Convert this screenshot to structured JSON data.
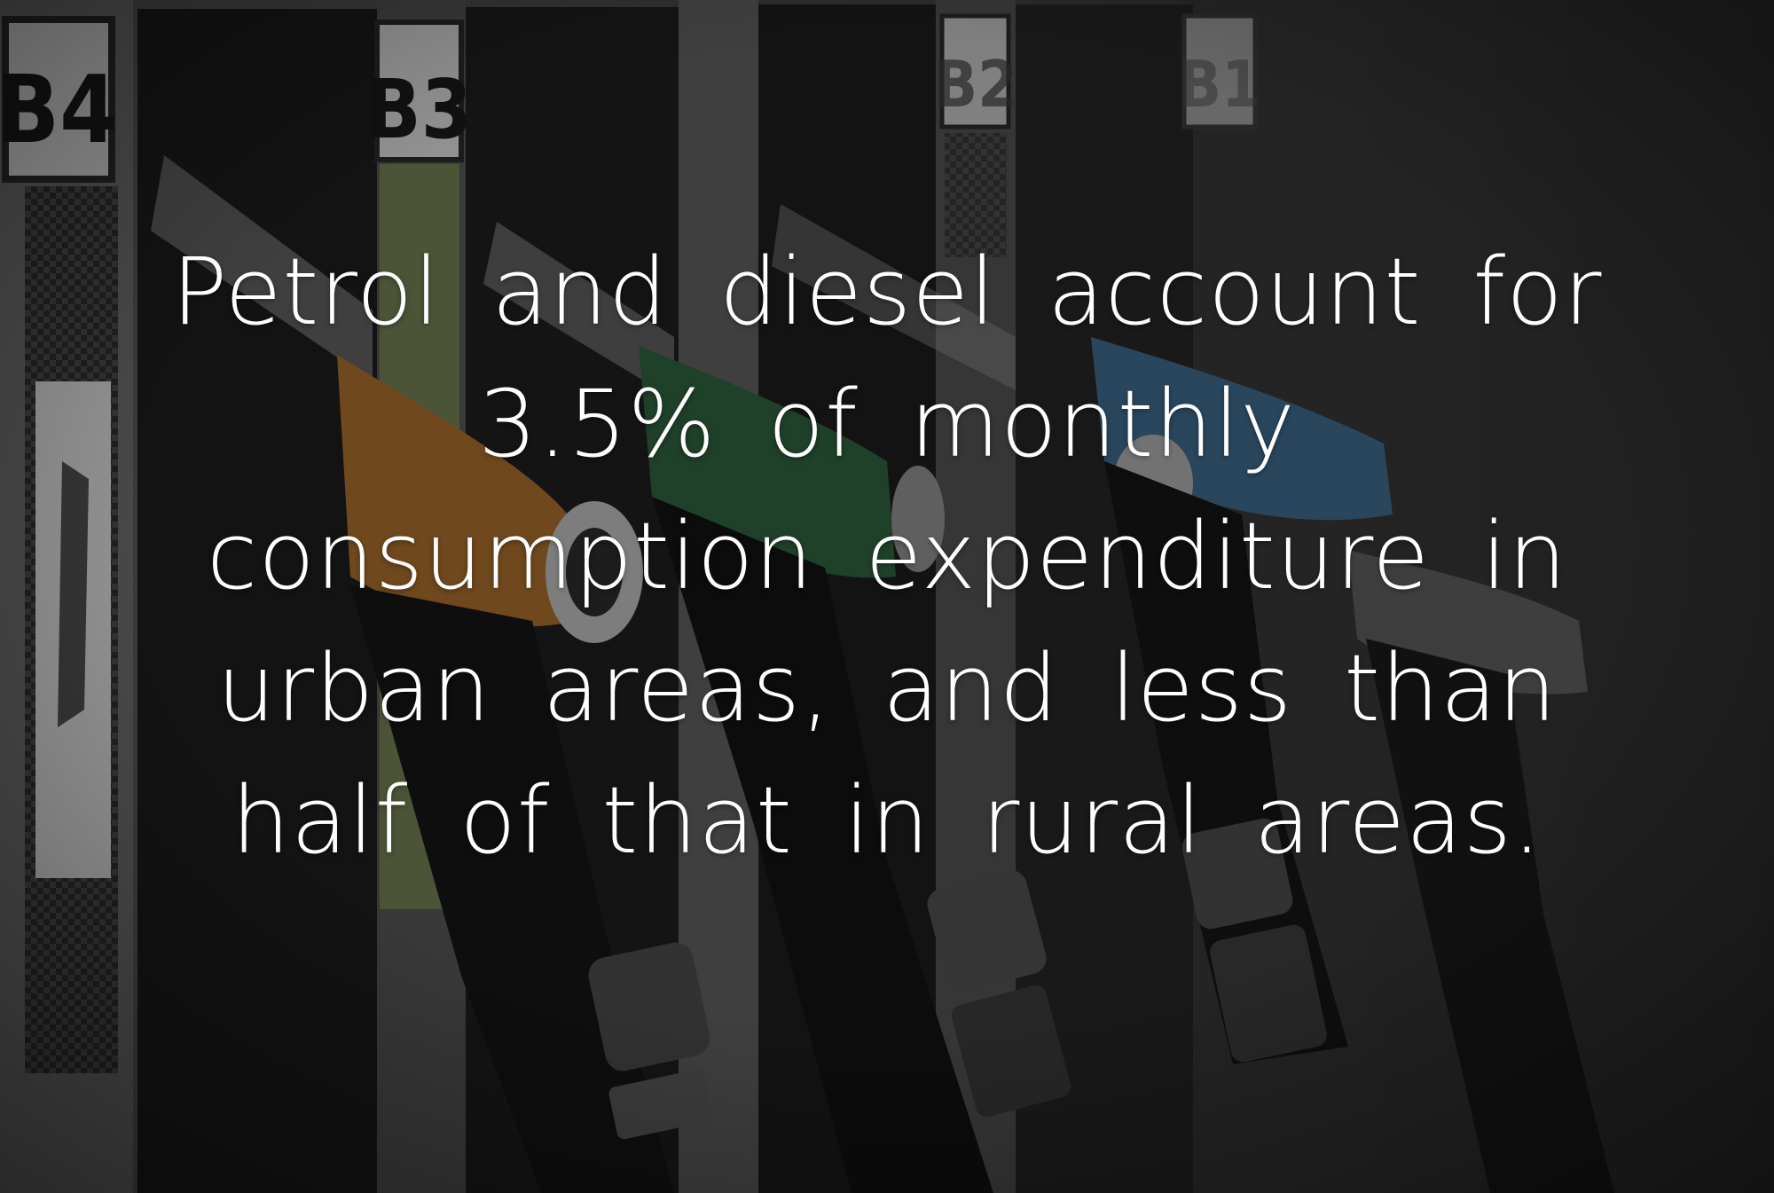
{
  "photo": {
    "subject": "fuel-pump-nozzles",
    "pump_labels": [
      "B4",
      "B3",
      "B2",
      "B1"
    ],
    "nozzle_colors": {
      "orange": "#a46a2c",
      "green": "#2f5f3d",
      "blue": "#3d6789",
      "grey": "#6d6d6d"
    }
  },
  "overlay": {
    "text": "Petrol and diesel account for 3.5% of monthly consumption expenditure in urban areas, and less than half of that in rural areas.",
    "color": "#ffffff"
  }
}
